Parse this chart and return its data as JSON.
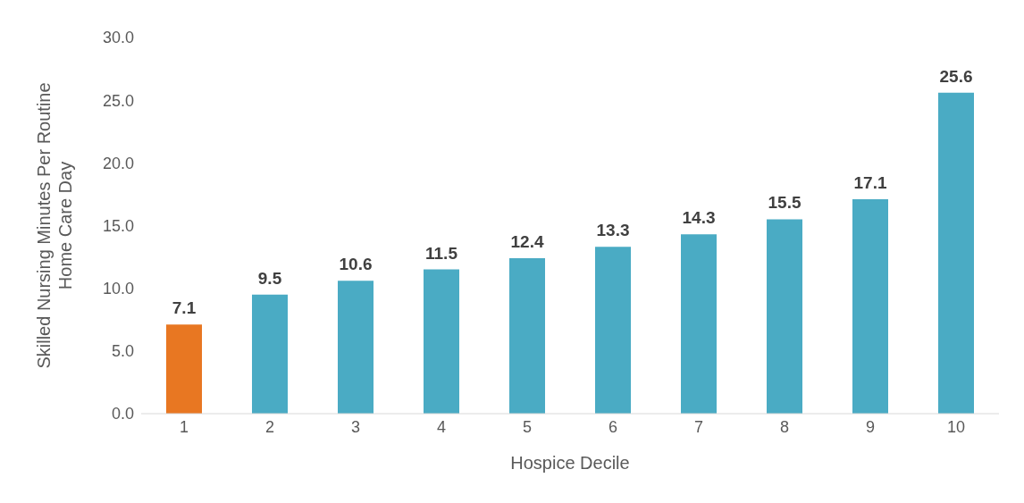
{
  "chart_data": {
    "type": "bar",
    "xlabel": "Hospice Decile",
    "ylabel": "Skilled Nursing Minutes Per Routine Home Care Day",
    "categories": [
      "1",
      "2",
      "3",
      "4",
      "5",
      "6",
      "7",
      "8",
      "9",
      "10"
    ],
    "values": [
      7.1,
      9.5,
      10.6,
      11.5,
      12.4,
      13.3,
      14.3,
      15.5,
      17.1,
      25.6
    ],
    "colors": [
      "#e87722",
      "#4aabc4",
      "#4aabc4",
      "#4aabc4",
      "#4aabc4",
      "#4aabc4",
      "#4aabc4",
      "#4aabc4",
      "#4aabc4",
      "#4aabc4"
    ],
    "ylim": [
      0,
      30
    ],
    "yticks": [
      {
        "value": 0,
        "label": "0.0"
      },
      {
        "value": 5,
        "label": "5.0"
      },
      {
        "value": 10,
        "label": "10.0"
      },
      {
        "value": 15,
        "label": "15.0"
      },
      {
        "value": 20,
        "label": "20.0"
      },
      {
        "value": 25,
        "label": "25.0"
      },
      {
        "value": 30,
        "label": "30.0"
      }
    ],
    "data_labels": true,
    "grid": false,
    "legend": false
  }
}
